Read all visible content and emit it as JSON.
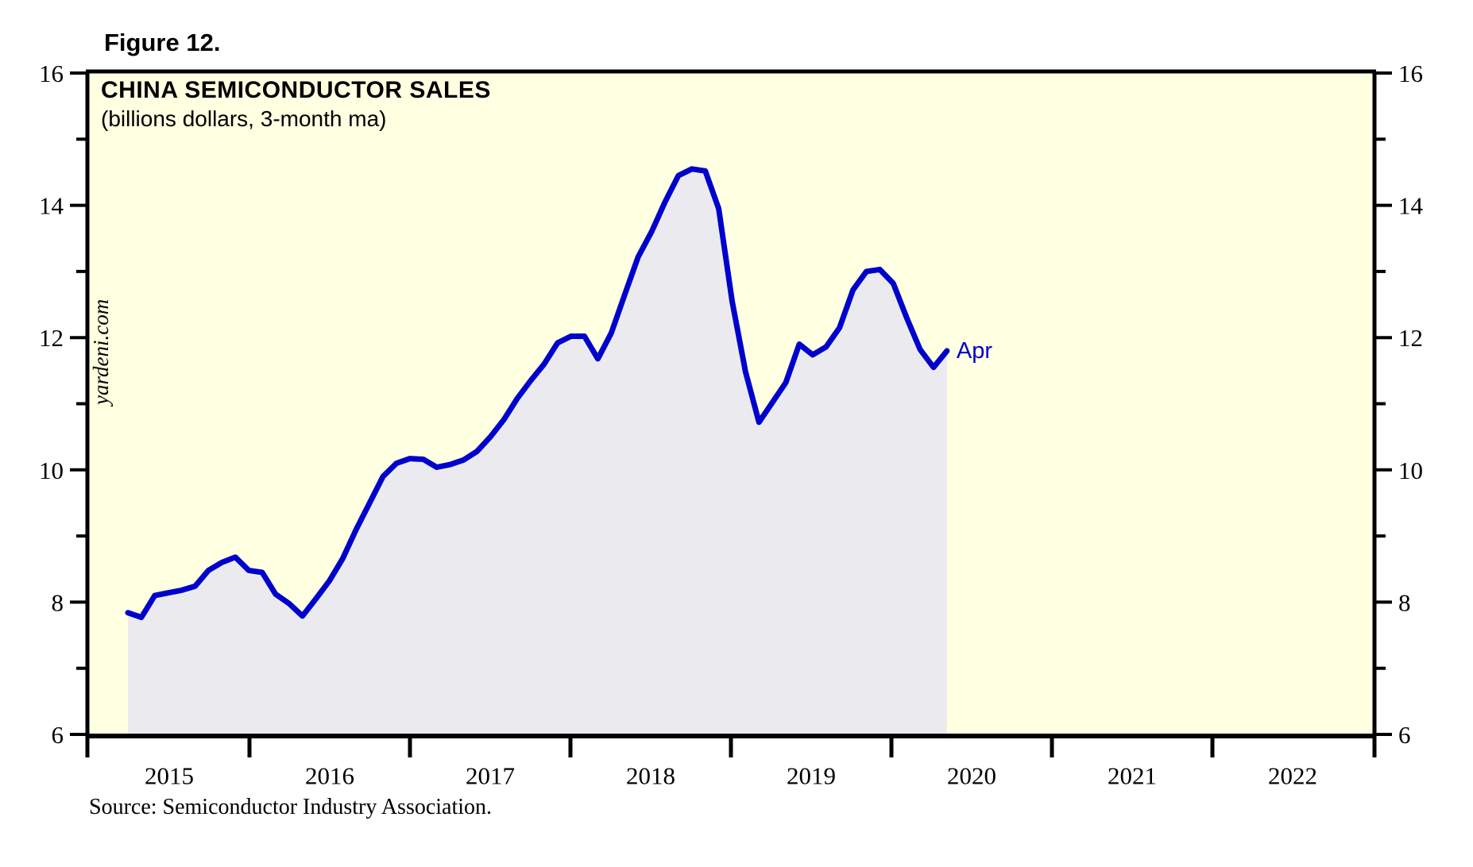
{
  "figure_label": "Figure 12.",
  "source": "Source: Semiconductor Industry Association.",
  "colors": {
    "line": "#0000cd",
    "area_fill": "#ebebef",
    "plot_background": "#ffffe1",
    "frame": "#000000",
    "annotation": "#0000cd"
  },
  "chart_data": {
    "type": "line",
    "title": "CHINA SEMICONDUCTOR SALES",
    "subtitle": "(billions dollars, 3-month ma)",
    "watermark": "yardeni.com",
    "last_point_label": "Apr",
    "ylim": [
      6,
      16
    ],
    "y_major_ticks": [
      6,
      8,
      10,
      12,
      14,
      16
    ],
    "y_minor_ticks": [
      7,
      9,
      11,
      13,
      15
    ],
    "x_year_labels": [
      "2015",
      "2016",
      "2017",
      "2018",
      "2019",
      "2020",
      "2021",
      "2022"
    ],
    "x_axis_span_years": 8,
    "grid": false,
    "legend": false,
    "months": [
      "Mar-2015",
      "Apr-2015",
      "May-2015",
      "Jun-2015",
      "Jul-2015",
      "Aug-2015",
      "Sep-2015",
      "Oct-2015",
      "Nov-2015",
      "Dec-2015",
      "Jan-2016",
      "Feb-2016",
      "Mar-2016",
      "Apr-2016",
      "May-2016",
      "Jun-2016",
      "Jul-2016",
      "Aug-2016",
      "Sep-2016",
      "Oct-2016",
      "Nov-2016",
      "Dec-2016",
      "Jan-2017",
      "Feb-2017",
      "Mar-2017",
      "Apr-2017",
      "May-2017",
      "Jun-2017",
      "Jul-2017",
      "Aug-2017",
      "Sep-2017",
      "Oct-2017",
      "Nov-2017",
      "Dec-2017",
      "Jan-2018",
      "Feb-2018",
      "Mar-2018",
      "Apr-2018",
      "May-2018",
      "Jun-2018",
      "Jul-2018",
      "Aug-2018",
      "Sep-2018",
      "Oct-2018",
      "Nov-2018",
      "Dec-2018",
      "Jan-2019",
      "Feb-2019",
      "Mar-2019",
      "Apr-2019",
      "May-2019",
      "Jun-2019",
      "Jul-2019",
      "Aug-2019",
      "Sep-2019",
      "Oct-2019",
      "Nov-2019",
      "Dec-2019",
      "Jan-2020",
      "Feb-2020",
      "Mar-2020",
      "Apr-2020"
    ],
    "values": [
      7.84,
      7.77,
      8.1,
      8.14,
      8.18,
      8.24,
      8.48,
      8.6,
      8.68,
      8.48,
      8.45,
      8.12,
      7.98,
      7.79,
      8.05,
      8.32,
      8.66,
      9.1,
      9.5,
      9.9,
      10.1,
      10.17,
      10.16,
      10.04,
      10.08,
      10.15,
      10.28,
      10.5,
      10.76,
      11.08,
      11.35,
      11.6,
      11.92,
      12.02,
      12.02,
      11.68,
      12.07,
      12.65,
      13.22,
      13.6,
      14.05,
      14.45,
      14.55,
      14.52,
      13.95,
      12.55,
      11.48,
      10.72,
      11.02,
      11.32,
      11.9,
      11.74,
      11.86,
      12.15,
      12.72,
      13.0,
      13.03,
      12.82,
      12.3,
      11.82,
      11.55,
      11.8
    ]
  }
}
